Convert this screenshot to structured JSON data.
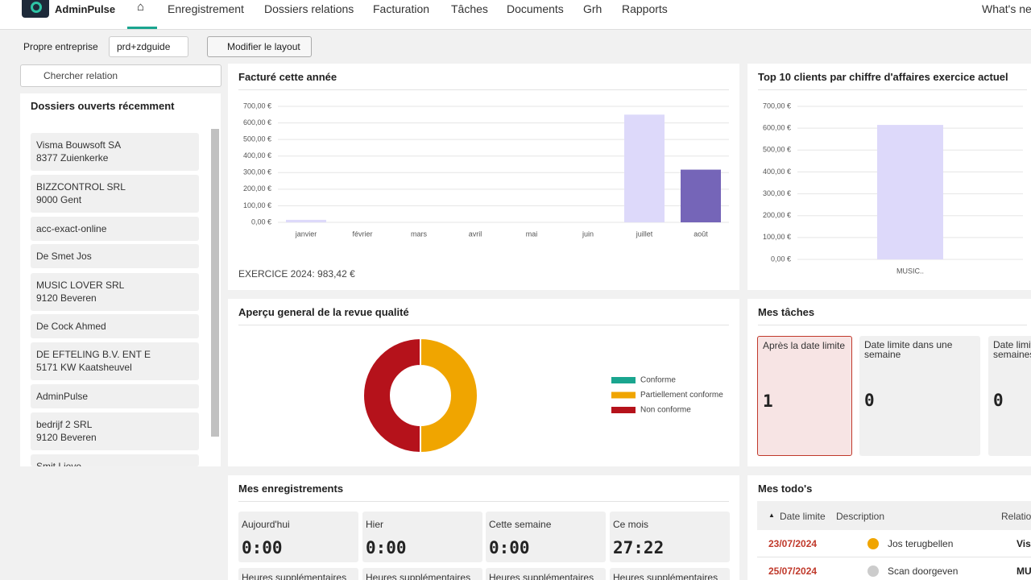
{
  "nav": {
    "logo": "AdminPulse",
    "items": [
      "Enregistrement",
      "Dossiers relations",
      "Facturation",
      "Tâches",
      "Documents",
      "Grh",
      "Rapports"
    ],
    "right": "What's new"
  },
  "toolbar": {
    "label": "Propre entreprise",
    "select": "prd+zdguide",
    "button": "Modifier le layout"
  },
  "sidebar": {
    "search": "Chercher relation",
    "title": "Dossiers ouverts récemment",
    "items": [
      {
        "name": "Visma Bouwsoft SA",
        "address": "8377 Zuienkerke"
      },
      {
        "name": "BIZZCONTROL SRL",
        "address": "9000 Gent"
      },
      {
        "name": "acc-exact-online"
      },
      {
        "name": "De Smet Jos"
      },
      {
        "name": "MUSIC LOVER SRL",
        "address": "9120 Beveren"
      },
      {
        "name": "De Cock Ahmed"
      },
      {
        "name": "DE EFTELING B.V. ENT E",
        "address": "5171 KW Kaatsheuvel"
      },
      {
        "name": "AdminPulse"
      },
      {
        "name": "bedrijf 2 SRL",
        "address": "9120 Beveren"
      },
      {
        "name": "Smit Lieve"
      }
    ]
  },
  "billed": {
    "type": "bar",
    "title": "Facturé cette année",
    "categories": [
      "janvier",
      "février",
      "mars",
      "avril",
      "mai",
      "juin",
      "juillet",
      "août"
    ],
    "values": [
      15,
      0,
      0,
      0,
      0,
      0,
      650,
      318
    ],
    "colors": [
      "#ddd9fa",
      "#ddd9fa",
      "#ddd9fa",
      "#ddd9fa",
      "#ddd9fa",
      "#ddd9fa",
      "#ddd9fa",
      "#7565b8"
    ],
    "ylim": [
      0,
      700
    ],
    "yticks": [
      {
        "value": 0,
        "label": "0,00 €"
      },
      {
        "value": 100,
        "label": "100,00 €"
      },
      {
        "value": 200,
        "label": "200,00 €"
      },
      {
        "value": 300,
        "label": "300,00 €"
      },
      {
        "value": 400,
        "label": "400,00 €"
      },
      {
        "value": 500,
        "label": "500,00 €"
      },
      {
        "value": 600,
        "label": "600,00 €"
      },
      {
        "value": 700,
        "label": "700,00 €"
      }
    ],
    "grid": true,
    "footer": "EXERCICE 2024: 983,42 €"
  },
  "top10": {
    "type": "bar",
    "title": "Top 10 clients par chiffre d'affaires exercice actuel",
    "categories": [
      "MUSIC.."
    ],
    "values": [
      615
    ],
    "color": "#ddd9fa",
    "ylim": [
      0,
      700
    ],
    "yticks": [
      {
        "value": 0,
        "label": "0,00 €"
      },
      {
        "value": 100,
        "label": "100,00 €"
      },
      {
        "value": 200,
        "label": "200,00 €"
      },
      {
        "value": 300,
        "label": "300,00 €"
      },
      {
        "value": 400,
        "label": "400,00 €"
      },
      {
        "value": 500,
        "label": "500,00 €"
      },
      {
        "value": 600,
        "label": "600,00 €"
      },
      {
        "value": 700,
        "label": "700,00 €"
      }
    ],
    "grid": true
  },
  "quality": {
    "type": "donut",
    "title": "Aperçu general de la revue qualité",
    "series": [
      {
        "name": "Conforme",
        "color": "#1aa58f",
        "value": 0
      },
      {
        "name": "Partiellement conforme",
        "color": "#f0a500",
        "value": 50
      },
      {
        "name": "Non conforme",
        "color": "#b5121b",
        "value": 50
      }
    ]
  },
  "tasks": {
    "title": "Mes tâches",
    "cards": [
      {
        "label": "Après la date limite",
        "count": 1
      },
      {
        "label": "Date limite dans une semaine",
        "count": 0
      },
      {
        "label": "Date limite dans deux semaines",
        "count": 0
      }
    ]
  },
  "records": {
    "title": "Mes enregistrements",
    "cards": [
      {
        "label": "Aujourd'hui",
        "value": "0:00"
      },
      {
        "label": "Hier",
        "value": "0:00"
      },
      {
        "label": "Cette semaine",
        "value": "0:00"
      },
      {
        "label": "Ce mois",
        "value": "27:22"
      }
    ],
    "extra": [
      "Heures supplémentaires",
      "Heures supplémentaires",
      "Heures supplémentaires",
      "Heures supplémentaires"
    ]
  },
  "todos": {
    "title": "Mes todo's",
    "columns": [
      "Date limite",
      "Description",
      "Relation"
    ],
    "rows": [
      {
        "date": "23/07/2024",
        "color": "#f0a500",
        "description": "Jos terugbellen",
        "relation": "Visma Bouwsoft SA"
      },
      {
        "date": "25/07/2024",
        "color": "#cccccc",
        "description": "Scan doorgeven",
        "relation": "MUSIC LOVER SRL"
      }
    ]
  }
}
